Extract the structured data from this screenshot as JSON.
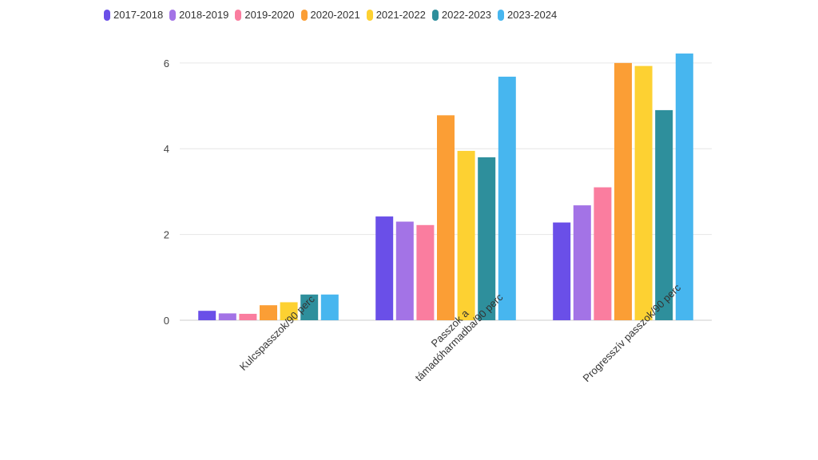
{
  "chart_data": {
    "type": "bar",
    "title": "",
    "xlabel": "",
    "ylabel": "",
    "ylim": [
      0,
      6.5
    ],
    "yticks": [
      0,
      2,
      4,
      6
    ],
    "grid": true,
    "legend_position": "top-left",
    "categories": [
      [
        "Kulcspasszok/90 perc"
      ],
      [
        "Passzok a",
        "támadóharmadba/90 perc"
      ],
      [
        "Progresszív passzok/90 perc"
      ]
    ],
    "series": [
      {
        "name": "2017-2018",
        "color": "#6a4fe8",
        "values": [
          0.22,
          2.42,
          2.28
        ]
      },
      {
        "name": "2018-2019",
        "color": "#a373e6",
        "values": [
          0.16,
          2.3,
          2.68
        ]
      },
      {
        "name": "2019-2020",
        "color": "#fa7d9f",
        "values": [
          0.15,
          2.22,
          3.1
        ]
      },
      {
        "name": "2020-2021",
        "color": "#fb9e35",
        "values": [
          0.35,
          4.78,
          6.0
        ]
      },
      {
        "name": "2021-2022",
        "color": "#fdd132",
        "values": [
          0.42,
          3.95,
          5.93
        ]
      },
      {
        "name": "2022-2023",
        "color": "#2e8f9c",
        "values": [
          0.6,
          3.8,
          4.9
        ]
      },
      {
        "name": "2023-2024",
        "color": "#47b6ef",
        "values": [
          0.6,
          5.68,
          6.22
        ]
      }
    ]
  }
}
